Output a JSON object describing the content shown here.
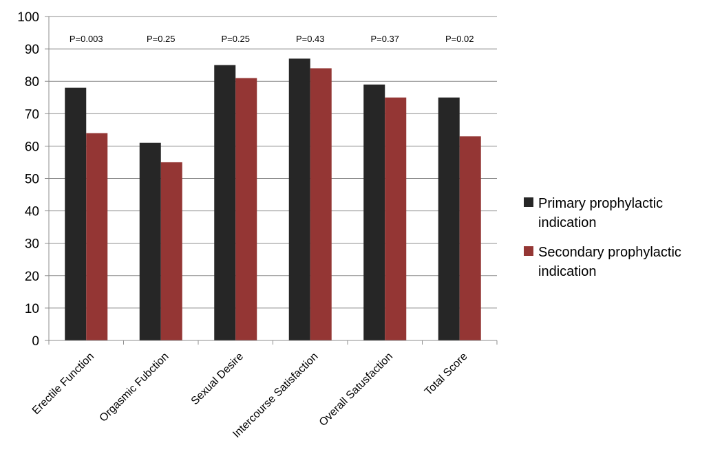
{
  "chart_data": {
    "type": "bar",
    "title": "",
    "xlabel": "",
    "ylabel": "",
    "ylim": [
      0,
      100
    ],
    "yticks": [
      "0",
      "10",
      "20",
      "30",
      "40",
      "50",
      "60",
      "70",
      "80",
      "90",
      "100"
    ],
    "grid": true,
    "legend_position": "right",
    "categories": [
      "Erectile Function",
      "Orgasmic Fubction",
      "Sexual Desire",
      "Intercourse Satisfaction",
      "Overall Satusfaction",
      "Total Score"
    ],
    "series": [
      {
        "name": "Primary prophylactic indication",
        "legend_lines": [
          "Primary prophylactic",
          "indication"
        ],
        "color": "#262626",
        "values": [
          78,
          61,
          85,
          87,
          79,
          75
        ]
      },
      {
        "name": "Secondary prophylactic indication",
        "legend_lines": [
          "Secondary prophylactic",
          "indication"
        ],
        "color": "#943634",
        "values": [
          64,
          55,
          81,
          84,
          75,
          63
        ]
      }
    ],
    "annotations": [
      "P=0.003",
      "P=0.25",
      "P=0.25",
      "P=0.43",
      "P=0.37",
      "P=0.02"
    ]
  }
}
